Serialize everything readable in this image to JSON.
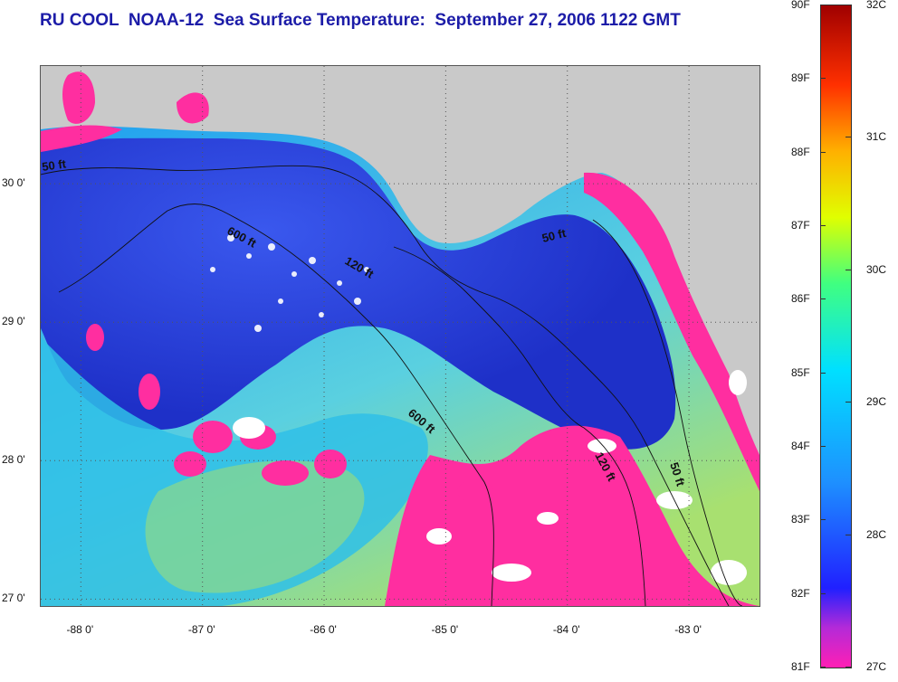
{
  "title": "RU COOL  NOAA-12  Sea Surface Temperature:  September 27, 2006 1122 GMT",
  "map": {
    "lon_range": [
      -88.33,
      -82.42
    ],
    "lat_range": [
      26.95,
      30.85
    ],
    "lat_labels": [
      {
        "value": 30,
        "text": "30 0'"
      },
      {
        "value": 29,
        "text": "29 0'"
      },
      {
        "value": 28,
        "text": "28 0'"
      },
      {
        "value": 27,
        "text": "27 0'"
      }
    ],
    "lon_labels": [
      {
        "value": -88,
        "text": "-88 0'"
      },
      {
        "value": -87,
        "text": "-87 0'"
      },
      {
        "value": -86,
        "text": "-86 0'"
      },
      {
        "value": -85,
        "text": "-85 0'"
      },
      {
        "value": -84,
        "text": "-84 0'"
      },
      {
        "value": -83,
        "text": "-83 0'"
      }
    ],
    "depth_contours": [
      {
        "text": "50 ft"
      },
      {
        "text": "600 ft"
      },
      {
        "text": "120 ft"
      },
      {
        "text": "50 ft"
      },
      {
        "text": "600 ft"
      },
      {
        "text": "120 ft"
      },
      {
        "text": "50 ft"
      }
    ],
    "colors": {
      "land": "#c9c9c9",
      "warm_water": "#ff2ea0",
      "cool_water": "#2a40e0",
      "mid_water": "#1fa8f0",
      "cloud": "#ffffff"
    }
  },
  "colorbar": {
    "f_labels": [
      "90F",
      "89F",
      "88F",
      "87F",
      "86F",
      "85F",
      "84F",
      "83F",
      "82F",
      "81F"
    ],
    "c_labels": [
      "32C",
      "31C",
      "30C",
      "29C",
      "28C",
      "27C"
    ]
  }
}
